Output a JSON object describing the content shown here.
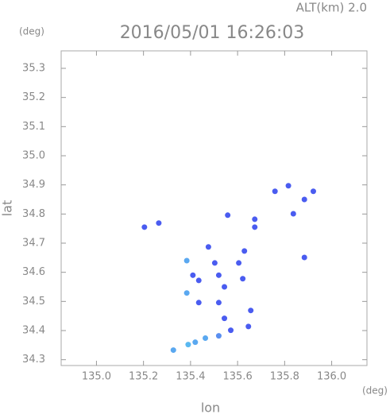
{
  "chart_data": {
    "type": "scatter",
    "title": "2016/05/01 16:26:03",
    "subtitle": "ALT(km) 2.0",
    "y_unit": "(deg)",
    "x_unit": "(deg)",
    "x_label": "lon",
    "y_label": "lat",
    "xlim": [
      134.85,
      136.15
    ],
    "ylim": [
      34.28,
      35.36
    ],
    "xticks": [
      {
        "value": 135,
        "label": "135.0"
      },
      135.2,
      135.4,
      135.6,
      135.8,
      {
        "value": 136,
        "label": "136.0"
      }
    ],
    "yticks": [
      34.3,
      34.4,
      34.5,
      34.6,
      34.7,
      34.8,
      34.9,
      {
        "value": 35,
        "label": "35.0"
      },
      35.1,
      35.2,
      35.3
    ],
    "x": [
      135.204,
      135.265,
      135.384,
      135.435,
      135.41,
      135.384,
      135.435,
      135.476,
      135.503,
      135.52,
      135.544,
      135.52,
      135.544,
      135.605,
      135.629,
      135.622,
      135.656,
      135.646,
      135.571,
      135.52,
      135.463,
      135.42,
      135.39,
      135.327,
      135.558,
      135.673,
      135.759,
      135.816,
      135.837,
      135.884,
      135.922,
      135.884,
      135.673
    ],
    "values": [
      34.755,
      34.769,
      34.64,
      34.572,
      34.59,
      34.529,
      34.496,
      34.687,
      34.632,
      34.59,
      34.55,
      34.496,
      34.442,
      34.632,
      34.673,
      34.578,
      34.469,
      34.414,
      34.401,
      34.382,
      34.374,
      34.36,
      34.352,
      34.333,
      34.796,
      34.755,
      34.878,
      34.897,
      34.801,
      34.85,
      34.878,
      34.651,
      34.782
    ],
    "colors": [
      "#4a5cf0",
      "#4a5cf0",
      "#5aa8f0",
      "#4a5cf0",
      "#4a5cf0",
      "#5aa8f0",
      "#4a5cf0",
      "#4a5cf0",
      "#4a5cf0",
      "#4a5cf0",
      "#4a5cf0",
      "#4a5cf0",
      "#4a5cf0",
      "#4a5cf0",
      "#4a5cf0",
      "#4a5cf0",
      "#4a5cf0",
      "#4a5cf0",
      "#4a5cf0",
      "#5a8ff0",
      "#5aa8f0",
      "#5aa8f0",
      "#5ab8f0",
      "#5aa8f0",
      "#4a5cf0",
      "#4a5cf0",
      "#4a5cf0",
      "#4a5cf0",
      "#4a5cf0",
      "#4a5cf0",
      "#4a5cf0",
      "#4a5cf0",
      "#4a5cf0"
    ]
  }
}
